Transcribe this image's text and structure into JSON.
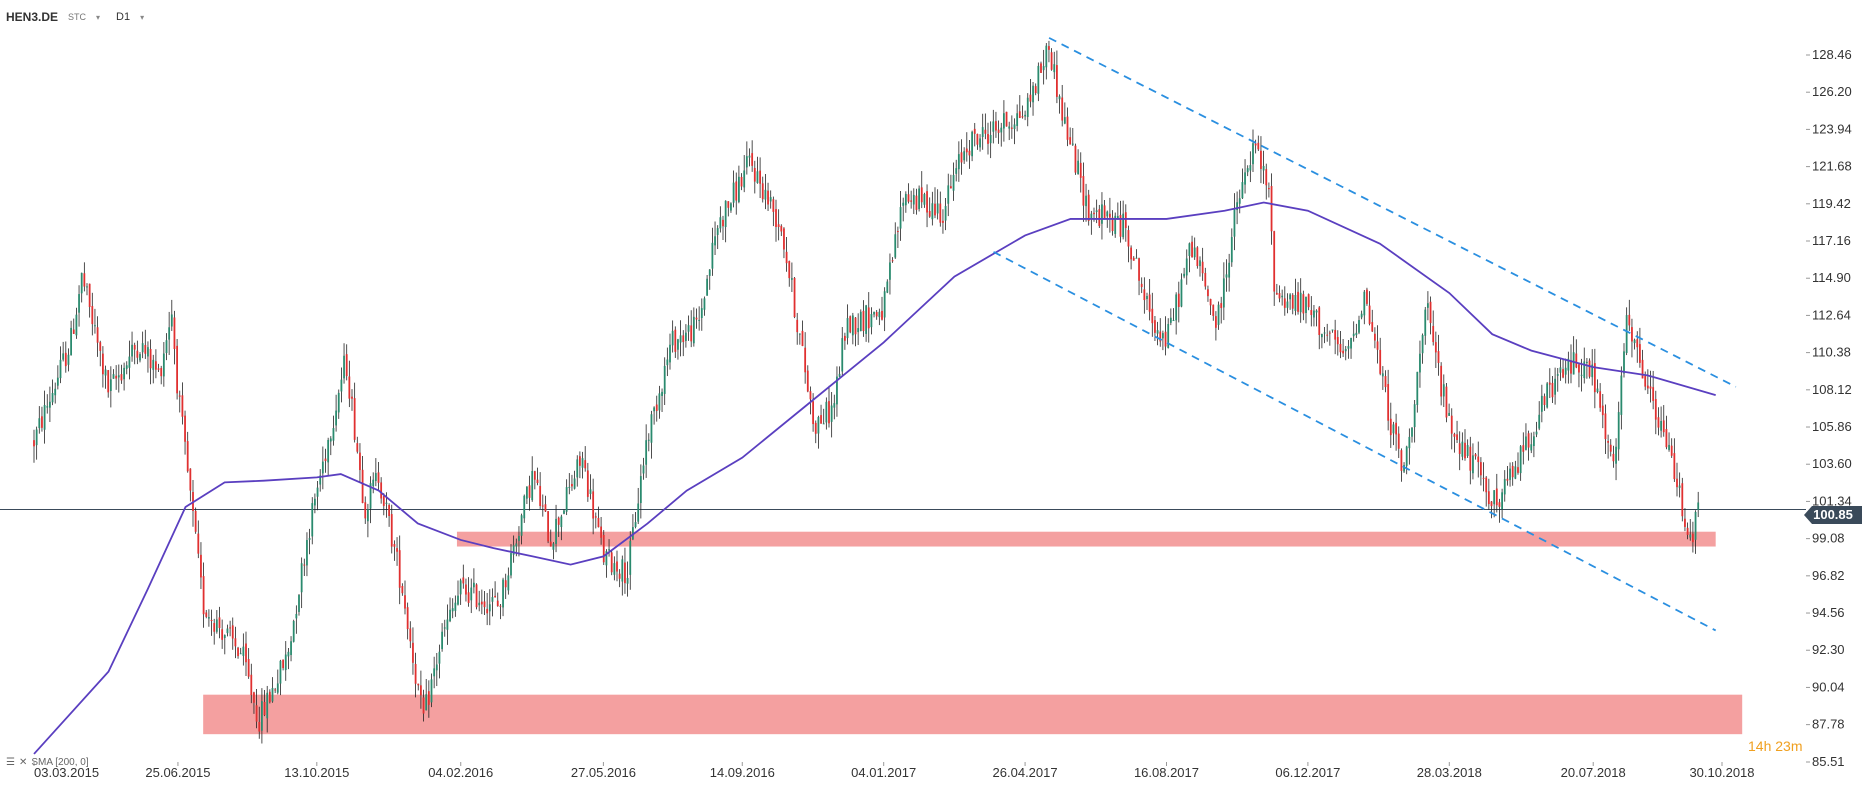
{
  "header": {
    "symbol": "HEN3.DE",
    "type_label": "STC",
    "timeframe": "D1"
  },
  "indicator_label": "SMA [200, 0]",
  "countdown": {
    "hours": "14",
    "h": "h",
    "minutes": "23",
    "m": "m"
  },
  "current_price": "100.85",
  "colors": {
    "candle_up": "#2a8a6e",
    "candle_down": "#e03030",
    "sma": "#5a3fc0",
    "channel": "#2a8fe0",
    "zone": "#f08080",
    "price_line": "#3a4a5a"
  },
  "chart_data": {
    "type": "line",
    "title": "",
    "x_ticks": [
      "03.03.2015",
      "25.06.2015",
      "13.10.2015",
      "04.02.2016",
      "27.05.2016",
      "14.09.2016",
      "04.01.2017",
      "26.04.2017",
      "16.08.2017",
      "06.12.2017",
      "28.03.2018",
      "20.07.2018",
      "30.10.2018"
    ],
    "y_ticks": [
      128.46,
      126.2,
      123.94,
      121.68,
      119.42,
      117.16,
      114.9,
      112.64,
      110.38,
      108.12,
      105.86,
      103.6,
      101.34,
      99.08,
      96.82,
      94.56,
      92.3,
      90.04,
      87.78,
      85.51
    ],
    "ylim": [
      85.51,
      130.0
    ],
    "price_key_points": [
      {
        "date": "03.03.2015",
        "price": 105
      },
      {
        "date": "01.04.2015",
        "price": 111
      },
      {
        "date": "10.04.2015",
        "price": 115
      },
      {
        "date": "01.05.2015",
        "price": 108
      },
      {
        "date": "25.05.2015",
        "price": 111
      },
      {
        "date": "10.06.2015",
        "price": 109
      },
      {
        "date": "20.06.2015",
        "price": 113
      },
      {
        "date": "25.06.2015",
        "price": 108
      },
      {
        "date": "15.07.2015",
        "price": 95
      },
      {
        "date": "15.08.2015",
        "price": 92
      },
      {
        "date": "28.08.2015",
        "price": 88
      },
      {
        "date": "20.09.2015",
        "price": 92
      },
      {
        "date": "05.10.2015",
        "price": 99
      },
      {
        "date": "13.10.2015",
        "price": 102
      },
      {
        "date": "05.11.2015",
        "price": 110
      },
      {
        "date": "20.11.2015",
        "price": 101
      },
      {
        "date": "01.12.2015",
        "price": 103
      },
      {
        "date": "20.12.2015",
        "price": 96
      },
      {
        "date": "05.01.2016",
        "price": 88
      },
      {
        "date": "20.01.2016",
        "price": 93
      },
      {
        "date": "04.02.2016",
        "price": 96
      },
      {
        "date": "05.03.2016",
        "price": 95
      },
      {
        "date": "01.04.2016",
        "price": 103
      },
      {
        "date": "15.04.2016",
        "price": 99
      },
      {
        "date": "10.05.2016",
        "price": 104
      },
      {
        "date": "27.05.2016",
        "price": 98
      },
      {
        "date": "15.06.2016",
        "price": 97
      },
      {
        "date": "30.06.2016",
        "price": 105
      },
      {
        "date": "20.07.2016",
        "price": 111
      },
      {
        "date": "10.08.2016",
        "price": 112
      },
      {
        "date": "25.08.2016",
        "price": 118
      },
      {
        "date": "14.09.2016",
        "price": 121
      },
      {
        "date": "20.09.2016",
        "price": 122
      },
      {
        "date": "15.10.2016",
        "price": 118
      },
      {
        "date": "10.11.2016",
        "price": 106
      },
      {
        "date": "25.11.2016",
        "price": 107
      },
      {
        "date": "05.12.2016",
        "price": 112
      },
      {
        "date": "04.01.2017",
        "price": 113
      },
      {
        "date": "20.01.2017",
        "price": 120
      },
      {
        "date": "20.02.2017",
        "price": 119
      },
      {
        "date": "10.03.2017",
        "price": 123
      },
      {
        "date": "26.04.2017",
        "price": 125
      },
      {
        "date": "15.05.2017",
        "price": 129
      },
      {
        "date": "25.05.2017",
        "price": 125
      },
      {
        "date": "15.06.2017",
        "price": 119
      },
      {
        "date": "15.07.2017",
        "price": 118
      },
      {
        "date": "01.08.2017",
        "price": 113
      },
      {
        "date": "16.08.2017",
        "price": 111
      },
      {
        "date": "05.09.2017",
        "price": 117
      },
      {
        "date": "25.09.2017",
        "price": 112
      },
      {
        "date": "10.10.2017",
        "price": 119
      },
      {
        "date": "25.10.2017",
        "price": 123
      },
      {
        "date": "05.11.2017",
        "price": 120
      },
      {
        "date": "10.11.2017",
        "price": 114
      },
      {
        "date": "06.12.2017",
        "price": 113
      },
      {
        "date": "05.01.2018",
        "price": 110
      },
      {
        "date": "20.01.2018",
        "price": 114
      },
      {
        "date": "10.02.2018",
        "price": 106
      },
      {
        "date": "20.02.2018",
        "price": 103
      },
      {
        "date": "10.03.2018",
        "price": 113
      },
      {
        "date": "28.03.2018",
        "price": 106
      },
      {
        "date": "20.04.2018",
        "price": 103
      },
      {
        "date": "05.05.2018",
        "price": 101
      },
      {
        "date": "15.06.2018",
        "price": 108
      },
      {
        "date": "05.07.2018",
        "price": 110
      },
      {
        "date": "20.07.2018",
        "price": 109
      },
      {
        "date": "05.08.2018",
        "price": 103
      },
      {
        "date": "15.08.2018",
        "price": 112
      },
      {
        "date": "25.08.2018",
        "price": 110
      },
      {
        "date": "10.09.2018",
        "price": 106
      },
      {
        "date": "20.09.2018",
        "price": 104
      },
      {
        "date": "05.10.2018",
        "price": 99
      },
      {
        "date": "12.10.2018",
        "price": 100.85
      }
    ],
    "sma_200_points": [
      {
        "date": "03.03.2015",
        "price": 86
      },
      {
        "date": "01.05.2015",
        "price": 91
      },
      {
        "date": "01.06.2015",
        "price": 96
      },
      {
        "date": "01.07.2015",
        "price": 101
      },
      {
        "date": "01.08.2015",
        "price": 102.5
      },
      {
        "date": "01.09.2015",
        "price": 102.6
      },
      {
        "date": "13.10.2015",
        "price": 102.8
      },
      {
        "date": "01.11.2015",
        "price": 103
      },
      {
        "date": "01.12.2015",
        "price": 102
      },
      {
        "date": "01.01.2016",
        "price": 100
      },
      {
        "date": "04.02.2016",
        "price": 99
      },
      {
        "date": "01.03.2016",
        "price": 98.5
      },
      {
        "date": "01.04.2016",
        "price": 98
      },
      {
        "date": "01.05.2016",
        "price": 97.5
      },
      {
        "date": "27.05.2016",
        "price": 98
      },
      {
        "date": "01.07.2016",
        "price": 100
      },
      {
        "date": "01.08.2016",
        "price": 102
      },
      {
        "date": "14.09.2016",
        "price": 104
      },
      {
        "date": "01.11.2016",
        "price": 107
      },
      {
        "date": "04.01.2017",
        "price": 111
      },
      {
        "date": "01.03.2017",
        "price": 115
      },
      {
        "date": "26.04.2017",
        "price": 117.5
      },
      {
        "date": "01.06.2017",
        "price": 118.5
      },
      {
        "date": "16.08.2017",
        "price": 118.5
      },
      {
        "date": "01.10.2017",
        "price": 119
      },
      {
        "date": "01.11.2017",
        "price": 119.5
      },
      {
        "date": "06.12.2017",
        "price": 119
      },
      {
        "date": "01.02.2018",
        "price": 117
      },
      {
        "date": "28.03.2018",
        "price": 114
      },
      {
        "date": "01.05.2018",
        "price": 111.5
      },
      {
        "date": "01.06.2018",
        "price": 110.5
      },
      {
        "date": "20.07.2018",
        "price": 109.5
      },
      {
        "date": "01.09.2018",
        "price": 109
      },
      {
        "date": "25.10.2018",
        "price": 107.8
      }
    ],
    "channel_upper": [
      {
        "date": "15.05.2017",
        "price": 129.5
      },
      {
        "date": "10.11.2018",
        "price": 108.3
      }
    ],
    "channel_lower": [
      {
        "date": "01.04.2017",
        "price": 116.5
      },
      {
        "date": "25.10.2018",
        "price": 93.5
      }
    ],
    "support_zones": [
      {
        "from_date": "01.02.2016",
        "to_date": "25.10.2018",
        "low": 98.6,
        "high": 99.5
      },
      {
        "from_date": "15.07.2015",
        "to_date": "15.11.2018",
        "low": 87.2,
        "high": 89.6
      }
    ],
    "price_line": 100.85
  }
}
